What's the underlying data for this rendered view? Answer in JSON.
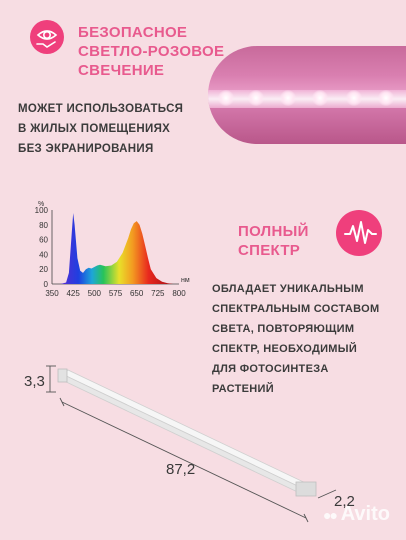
{
  "top_block": {
    "heading": [
      "БЕЗОПАСНОЕ",
      "СВЕТЛО-РОЗОВОЕ",
      "СВЕЧЕНИЕ"
    ],
    "body": [
      "МОЖЕТ ИСПОЛЬЗОВАТЬСЯ",
      "В ЖИЛЫХ ПОМЕЩЕНИЯХ",
      "БЕЗ ЭКРАНИРОВАНИЯ"
    ],
    "icon": "eye-hand-icon"
  },
  "spectrum_block": {
    "heading": [
      "ПОЛНЫЙ",
      "СПЕКТР"
    ],
    "icon": "pulse-wave-icon",
    "body": [
      "ОБЛАДАЕТ УНИКАЛЬНЫМ",
      "СПЕКТРАЛЬНЫМ СОСТАВОМ",
      "СВЕТА, ПОВТОРЯЮЩИМ",
      "СПЕКТР, НЕОБХОДИМЫЙ",
      "ДЛЯ ФОТОСИНТЕЗА",
      "РАСТЕНИЙ"
    ]
  },
  "chart_data": {
    "type": "area",
    "xlabel": "нм",
    "ylabel": "%",
    "xlim": [
      350,
      800
    ],
    "ylim": [
      0,
      100
    ],
    "xticks": [
      "350",
      "425",
      "500",
      "575",
      "650",
      "725",
      "800"
    ],
    "yticks": [
      "100",
      "80",
      "60",
      "40",
      "20",
      "0"
    ],
    "x": [
      380,
      400,
      410,
      420,
      425,
      430,
      440,
      450,
      460,
      470,
      480,
      490,
      500,
      510,
      520,
      540,
      560,
      580,
      600,
      620,
      630,
      640,
      650,
      660,
      670,
      680,
      690,
      700,
      720,
      740,
      760,
      780
    ],
    "y": [
      0,
      2,
      15,
      70,
      96,
      80,
      35,
      18,
      15,
      20,
      22,
      21,
      23,
      25,
      26,
      24,
      25,
      30,
      42,
      62,
      74,
      82,
      85,
      80,
      68,
      52,
      35,
      20,
      8,
      3,
      1,
      0
    ]
  },
  "dimensions": {
    "height": "3,3",
    "length": "87,2",
    "depth": "2,2"
  },
  "watermark": "Avito",
  "colors": {
    "background": "#f7dde3",
    "accent": "#ef3f7c",
    "heading_pink": "#e85a8e"
  }
}
